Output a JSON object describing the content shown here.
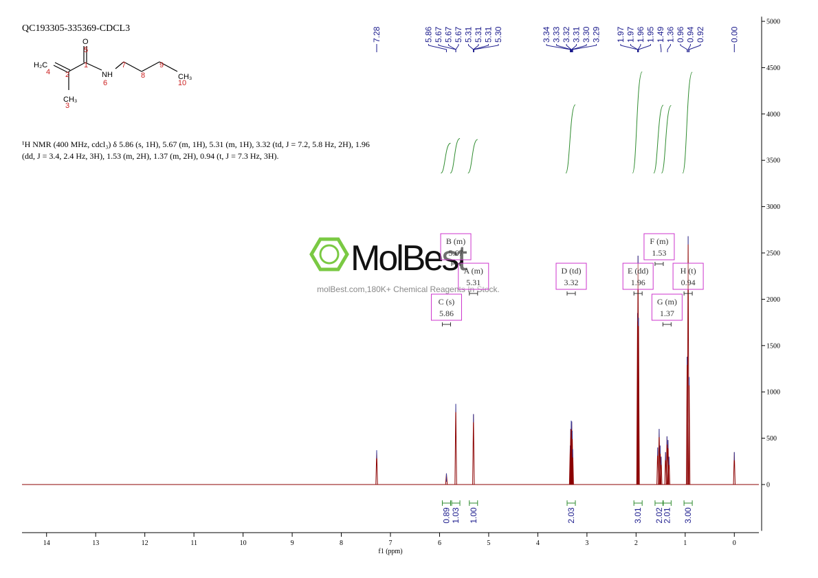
{
  "header": {
    "title": "QC193305-335369-CDCL3"
  },
  "molecule": {
    "atom_labels": [
      "O",
      "H₂C",
      "NH",
      "CH₃",
      "CH₃"
    ],
    "numbers": [
      1,
      2,
      3,
      4,
      5,
      6,
      7,
      8,
      9,
      10
    ]
  },
  "description": [
    "¹H NMR (400 MHz, cdcl₃) δ 5.86 (s, 1H), 5.67 (m, 1H), 5.31 (m, 1H), 3.32 (td, J = 7.2, 5.8 Hz, 2H), 1.96",
    "(dd, J = 3.4, 2.4 Hz, 3H), 1.53 (m, 2H), 1.37 (m, 2H), 0.94 (t, J = 7.3 Hz, 3H)."
  ],
  "watermark": {
    "brand": "MolBest",
    "tagline": "molBest.com,180K+ Chemical Reagents In Stock."
  },
  "chart_data": {
    "type": "nmr",
    "x_label": "f1 (ppm)",
    "color": "#8b0000",
    "xlim": [
      14.5,
      -0.5
    ],
    "xticks": [
      14,
      13,
      12,
      11,
      10,
      9,
      8,
      7,
      6,
      5,
      4,
      3,
      2,
      1,
      0
    ],
    "ylim": [
      -500,
      5050
    ],
    "yticks": [
      0,
      500,
      1000,
      1500,
      2000,
      2500,
      3000,
      3500,
      4000,
      4500,
      5000
    ],
    "x": [
      7.28,
      5.86,
      5.67,
      5.31,
      3.34,
      3.33,
      3.32,
      3.31,
      3.3,
      3.29,
      1.97,
      1.96,
      1.95,
      1.56,
      1.53,
      1.51,
      1.49,
      1.4,
      1.37,
      1.35,
      1.33,
      0.96,
      0.94,
      0.92,
      0.0
    ],
    "values": [
      370,
      120,
      870,
      760,
      420,
      600,
      690,
      680,
      580,
      380,
      1850,
      2470,
      1800,
      400,
      600,
      420,
      300,
      350,
      520,
      480,
      300,
      1380,
      2680,
      1160,
      350
    ],
    "peak_labels": [
      {
        "value": 7.28,
        "label": "7.28"
      },
      {
        "value": 5.86,
        "label": "5.86"
      },
      {
        "value": 5.67,
        "label": "5.67"
      },
      {
        "value": 5.67,
        "label": "5.67"
      },
      {
        "value": 5.67,
        "label": "5.67"
      },
      {
        "value": 5.31,
        "label": "5.31"
      },
      {
        "value": 5.31,
        "label": "5.31"
      },
      {
        "value": 5.31,
        "label": "5.31"
      },
      {
        "value": 5.3,
        "label": "5.30"
      },
      {
        "value": 3.34,
        "label": "3.34"
      },
      {
        "value": 3.33,
        "label": "3.33"
      },
      {
        "value": 3.32,
        "label": "3.32"
      },
      {
        "value": 3.31,
        "label": "3.31"
      },
      {
        "value": 3.3,
        "label": "3.30"
      },
      {
        "value": 3.29,
        "label": "3.29"
      },
      {
        "value": 1.97,
        "label": "1.97"
      },
      {
        "value": 1.97,
        "label": "1.97"
      },
      {
        "value": 1.96,
        "label": "1.96"
      },
      {
        "value": 1.95,
        "label": "1.95"
      },
      {
        "value": 1.49,
        "label": "1.49"
      },
      {
        "value": 1.36,
        "label": "1.36"
      },
      {
        "value": 0.96,
        "label": "0.96"
      },
      {
        "value": 0.94,
        "label": "0.94"
      },
      {
        "value": 0.92,
        "label": "0.92"
      },
      {
        "value": 0,
        "label": "0.00"
      }
    ],
    "integrals": {
      "color": "#2e8b2e",
      "x": [
        5.86,
        5.67,
        5.31,
        3.32,
        1.96,
        1.53,
        1.37,
        0.94
      ],
      "values": [
        0.89,
        1.03,
        1.0,
        2.03,
        3.01,
        2.02,
        2.01,
        3.0
      ],
      "value_labels": [
        "0.89",
        "1.03",
        "1.00",
        "2.03",
        "3.01",
        "2.02",
        "2.01",
        "3.00"
      ]
    },
    "multiplets": [
      {
        "label": "A (m)",
        "shift": 5.31
      },
      {
        "label": "B (m)",
        "shift": 5.67
      },
      {
        "label": "C (s)",
        "shift": 5.86
      },
      {
        "label": "D (td)",
        "shift": 3.32
      },
      {
        "label": "E (dd)",
        "shift": 1.96
      },
      {
        "label": "F (m)",
        "shift": 1.53
      },
      {
        "label": "G (m)",
        "shift": 1.37
      },
      {
        "label": "H (t)",
        "shift": 0.94
      }
    ]
  }
}
